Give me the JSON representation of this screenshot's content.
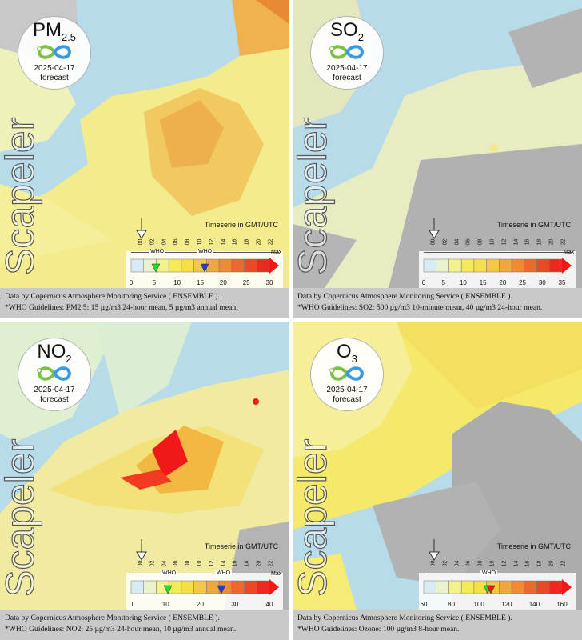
{
  "panels": [
    {
      "pollutant": "PM",
      "pollutant_sub": "2.5",
      "date": "2025-04-17",
      "forecast": "forecast",
      "timeserie": "Timeserie in GMT/UTC",
      "hours": [
        "00",
        "02",
        "04",
        "06",
        "08",
        "10",
        "12",
        "14",
        "16",
        "18",
        "20",
        "22"
      ],
      "who_labels": [
        "WHO",
        "WHO"
      ],
      "max": "Max",
      "ticks": [
        "0",
        "5",
        "10",
        "15",
        "20",
        "25",
        "30"
      ],
      "footer_line1": "Data by Copernicus Atmosphere Monitoring Service ( ENSEMBLE ).",
      "footer_line2": "*WHO Guidelines: PM2.5: 15 µg/m3 24-hour mean, 5 µg/m3 annual mean.",
      "brand": "Scapeler"
    },
    {
      "pollutant": "SO",
      "pollutant_sub": "2",
      "date": "2025-04-17",
      "forecast": "forecast",
      "timeserie": "Timeserie in GMT/UTC",
      "hours": [
        "00",
        "02",
        "04",
        "06",
        "08",
        "10",
        "12",
        "14",
        "16",
        "18",
        "20",
        "22"
      ],
      "who_labels": [],
      "max": "Max",
      "ticks": [
        "0",
        "5",
        "10",
        "15",
        "20",
        "25",
        "30",
        "35"
      ],
      "footer_line1": "Data by Copernicus Atmosphere Monitoring Service ( ENSEMBLE ).",
      "footer_line2": "*WHO Guidelines: SO2: 500 µg/m3 10-minute mean, 40 µg/m3 24-hour mean.",
      "brand": "Scapeler"
    },
    {
      "pollutant": "NO",
      "pollutant_sub": "2",
      "date": "2025-04-17",
      "forecast": "forecast",
      "timeserie": "Timeserie in GMT/UTC",
      "hours": [
        "00",
        "02",
        "04",
        "06",
        "08",
        "10",
        "12",
        "14",
        "16",
        "18",
        "20",
        "22"
      ],
      "who_labels": [
        "WHO",
        "WHO"
      ],
      "max": "Max",
      "ticks": [
        "0",
        "10",
        "20",
        "30",
        "40"
      ],
      "footer_line1": "Data by Copernicus Atmosphere Monitoring Service ( ENSEMBLE ).",
      "footer_line2": "*WHO Guidelines: NO2: 25 µg/m3 24-hour mean, 10 µg/m3 annual mean.",
      "brand": "Scapeler"
    },
    {
      "pollutant": "O",
      "pollutant_sub": "3",
      "date": "2025-04-17",
      "forecast": "forecast",
      "timeserie": "Timeserie in GMT/UTC",
      "hours": [
        "00",
        "02",
        "04",
        "06",
        "08",
        "10",
        "12",
        "14",
        "16",
        "18",
        "20",
        "22"
      ],
      "who_labels": [
        "WHO"
      ],
      "max": "",
      "ticks": [
        "60",
        "80",
        "100",
        "120",
        "140",
        "160"
      ],
      "footer_line1": "Data by Copernicus Atmosphere Monitoring Service ( ENSEMBLE ).",
      "footer_line2": "*WHO Guidelines: Ozone: 100 µg/m3 8-hour mean.",
      "brand": "Scapeler"
    }
  ],
  "colors": {
    "sea": "#b7dbe9",
    "land_nodata": "#a9a9a9",
    "pale": "#eef1c6",
    "yellow": "#f5ec6a",
    "orange": "#f2b43f",
    "red": "#f01818",
    "who_green": "#22dd22",
    "who_blue": "#1a3fd8",
    "footer_bg": "#c9c9c9"
  }
}
